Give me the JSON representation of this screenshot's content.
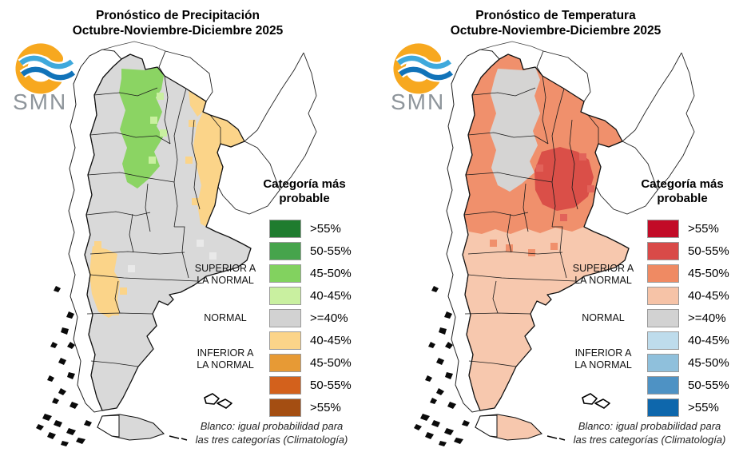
{
  "panels": [
    {
      "title_line1": "Pronóstico de Precipitación",
      "title_line2": "Octubre-Noviembre-Diciembre 2025",
      "logo_text": "SMN",
      "legend": {
        "heading_line1": "Categoría más",
        "heading_line2": "probable",
        "items": [
          {
            "label": ">55%",
            "color": "#1f7c2f"
          },
          {
            "label": "50-55%",
            "color": "#46a44c"
          },
          {
            "label": "45-50%",
            "color": "#82d25f"
          },
          {
            "label": "40-45%",
            "color": "#c9f0a0"
          },
          {
            "label": ">=40%",
            "color": "#d2d2d2"
          },
          {
            "label": "40-45%",
            "color": "#fbd489"
          },
          {
            "label": "45-50%",
            "color": "#e79a35"
          },
          {
            "label": "50-55%",
            "color": "#d3611c"
          },
          {
            "label": ">55%",
            "color": "#a44e12"
          }
        ],
        "side_labels": [
          {
            "text_line1": "SUPERIOR A",
            "text_line2": "LA NORMAL"
          },
          {
            "text_line1": "NORMAL",
            "text_line2": ""
          },
          {
            "text_line1": "INFERIOR A",
            "text_line2": "LA NORMAL"
          }
        ]
      },
      "footnote_line1": "Blanco: igual probabilidad para",
      "footnote_line2": "las tres categorías (Climatología)",
      "map_colors": {
        "base": "#d9d9d9",
        "region_a": "#8bd463",
        "region_b": "#fbd489",
        "region_c": "",
        "pixel_a": "#c9f0a0",
        "pixel_b": "#e9e9e9"
      }
    },
    {
      "title_line1": "Pronóstico de Temperatura",
      "title_line2": "Octubre-Noviembre-Diciembre 2025",
      "logo_text": "SMN",
      "legend": {
        "heading_line1": "Categoría más",
        "heading_line2": "probable",
        "items": [
          {
            "label": ">55%",
            "color": "#c20b27"
          },
          {
            "label": "50-55%",
            "color": "#d94a48"
          },
          {
            "label": "45-50%",
            "color": "#ef8a63"
          },
          {
            "label": "40-45%",
            "color": "#f6c3a7"
          },
          {
            "label": ">=40%",
            "color": "#d2d2d2"
          },
          {
            "label": "40-45%",
            "color": "#bedcec"
          },
          {
            "label": "45-50%",
            "color": "#8fc0dc"
          },
          {
            "label": "50-55%",
            "color": "#4e92c4"
          },
          {
            "label": ">55%",
            "color": "#0e67ac"
          }
        ],
        "side_labels": [
          {
            "text_line1": "SUPERIOR A",
            "text_line2": "LA NORMAL"
          },
          {
            "text_line1": "NORMAL",
            "text_line2": ""
          },
          {
            "text_line1": "INFERIOR A",
            "text_line2": "LA NORMAL"
          }
        ]
      },
      "footnote_line1": "Blanco: igual probabilidad para",
      "footnote_line2": "las tres categorías (Climatología)",
      "map_colors": {
        "base": "#f7c8ae",
        "region_a": "#f0906c",
        "region_b": "#da4f48",
        "region_c": "#d5d4d3",
        "pixel_a": "#f3a585",
        "pixel_b": "#e2635a"
      }
    }
  ],
  "logo_colors": {
    "arc": "#F7A81F",
    "wave_top": "#3FA9DC",
    "wave_bottom": "#1173B9",
    "text": "#8E959B"
  }
}
